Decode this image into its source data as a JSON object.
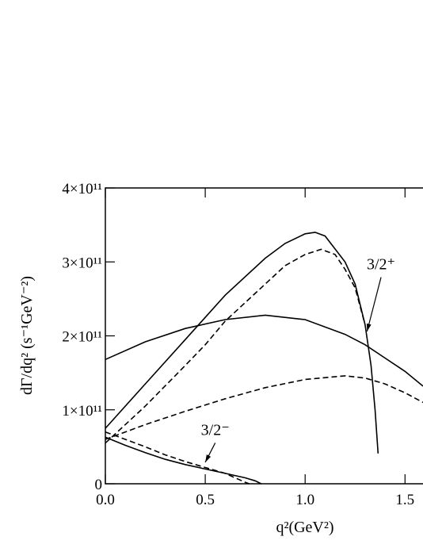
{
  "chart_data": {
    "type": "line",
    "xlabel": "q²(GeV²)",
    "ylabel": "dΓ/dq² (s⁻¹GeV⁻²)",
    "xlim": [
      0,
      1.59
    ],
    "ylim": [
      0,
      400000000000
    ],
    "xticks": [
      {
        "value": 0,
        "label": "0.0"
      },
      0.5,
      {
        "value": 1,
        "label": "1.0"
      },
      1.5
    ],
    "yticks": [
      0,
      {
        "value": 100000000000,
        "label": "1×10¹¹"
      },
      {
        "value": 200000000000,
        "label": "2×10¹¹"
      },
      {
        "value": 300000000000,
        "label": "3×10¹¹"
      },
      {
        "value": 400000000000,
        "label": "4×10¹¹"
      }
    ],
    "series": [
      {
        "color": "#000000",
        "dashed": false,
        "x": [
          0,
          0.2,
          0.4,
          0.5,
          0.6,
          0.8,
          0.9,
          1.0,
          1.05,
          1.1,
          1.2,
          1.25,
          1.3,
          1.33,
          1.35,
          1.365
        ],
        "values": [
          75000000000.0,
          135000000000.0,
          195000000000.0,
          225000000000.0,
          255000000000.0,
          305000000000.0,
          325000000000.0,
          338000000000.0,
          340000000000.0,
          335000000000.0,
          300000000000.0,
          270000000000.0,
          215000000000.0,
          160000000000.0,
          100000000000.0,
          41000000000.0
        ]
      },
      {
        "color": "#000000",
        "dashed": true,
        "x": [
          0,
          0.2,
          0.4,
          0.5,
          0.6,
          0.8,
          0.9,
          1.0,
          1.08,
          1.15,
          1.2,
          1.25,
          1.3
        ],
        "values": [
          55000000000.0,
          105000000000.0,
          160000000000.0,
          188000000000.0,
          220000000000.0,
          270000000000.0,
          295000000000.0,
          310000000000.0,
          317000000000.0,
          310000000000.0,
          290000000000.0,
          265000000000.0,
          215000000000.0
        ]
      },
      {
        "color": "#000000",
        "dashed": false,
        "x": [
          0,
          0.2,
          0.4,
          0.6,
          0.8,
          1.0,
          1.2,
          1.3,
          1.4,
          1.5,
          1.59
        ],
        "values": [
          168000000000.0,
          192000000000.0,
          210000000000.0,
          222000000000.0,
          228000000000.0,
          222000000000.0,
          202000000000.0,
          188000000000.0,
          170000000000.0,
          152000000000.0,
          132000000000.0
        ]
      },
      {
        "color": "#000000",
        "dashed": true,
        "x": [
          0,
          0.2,
          0.4,
          0.6,
          0.8,
          1.0,
          1.2,
          1.3,
          1.4,
          1.5,
          1.59
        ],
        "values": [
          60000000000.0,
          80000000000.0,
          98000000000.0,
          115000000000.0,
          130000000000.0,
          141000000000.0,
          146000000000.0,
          143000000000.0,
          135000000000.0,
          123000000000.0,
          110000000000.0
        ]
      },
      {
        "color": "#000000",
        "dashed": false,
        "x": [
          0,
          0.1,
          0.2,
          0.3,
          0.4,
          0.5,
          0.6,
          0.7,
          0.75,
          0.78
        ],
        "values": [
          63000000000.0,
          52000000000.0,
          42000000000.0,
          33000000000.0,
          26000000000.0,
          20000000000.0,
          14000000000.0,
          8000000000.0,
          4000000000.0,
          0
        ]
      },
      {
        "color": "#000000",
        "dashed": true,
        "x": [
          0,
          0.1,
          0.2,
          0.3,
          0.4,
          0.5,
          0.6,
          0.65,
          0.7,
          0.72
        ],
        "values": [
          70000000000.0,
          60000000000.0,
          50000000000.0,
          39000000000.0,
          30000000000.0,
          22000000000.0,
          14000000000.0,
          8000000000.0,
          2000000000.0,
          0
        ]
      }
    ],
    "annotations": [
      {
        "text": "3/2⁺",
        "x": 1.38,
        "y": 290000000000.0,
        "arrow_x": 1.31,
        "arrow_y": 206000000000.0
      },
      {
        "text": "3/2⁻",
        "x": 0.55,
        "y": 66000000000.0,
        "arrow_x": 0.5,
        "arrow_y": 29000000000.0
      }
    ]
  }
}
